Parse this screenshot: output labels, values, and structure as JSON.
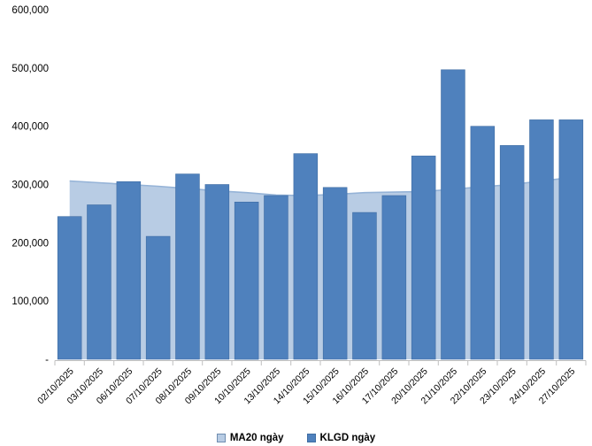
{
  "chart_data": {
    "type": "bar",
    "subtype": "bars-with-area-overlay",
    "title": "",
    "xlabel": "",
    "ylabel": "",
    "categories": [
      "02/10/2025",
      "03/10/2025",
      "06/10/2025",
      "07/10/2025",
      "08/10/2025",
      "09/10/2025",
      "10/10/2025",
      "13/10/2025",
      "14/10/2025",
      "15/10/2025",
      "16/10/2025",
      "17/10/2025",
      "20/10/2025",
      "21/10/2025",
      "22/10/2025",
      "23/10/2025",
      "24/10/2025",
      "27/10/2025"
    ],
    "series": [
      {
        "name": "MA20 ngày",
        "render": "area",
        "values": [
          306000,
          303000,
          300000,
          297000,
          293000,
          289000,
          286000,
          282000,
          281000,
          283000,
          286000,
          287000,
          288000,
          292000,
          296000,
          300000,
          306000,
          312000
        ]
      },
      {
        "name": "KLGD ngày",
        "render": "bar",
        "values": [
          245000,
          265000,
          305000,
          211000,
          318000,
          300000,
          270000,
          281000,
          353000,
          295000,
          252000,
          281000,
          349000,
          497000,
          400000,
          367000,
          411000,
          411000
        ]
      }
    ],
    "ylim": [
      0,
      600000
    ],
    "ytick_interval": 100000,
    "ytick_labels": [
      "-",
      "100,000",
      "200,000",
      "300,000",
      "400,000",
      "500,000",
      "600,000"
    ],
    "grid": false,
    "legend_position": "bottom",
    "colors": {
      "bar_fill": "#4f81bd",
      "bar_border": "#3f6da3",
      "area_fill": "#b8cce4",
      "area_line": "#95b3d7",
      "axis_line": "#bfbfbf",
      "label_text": "#000000"
    }
  }
}
